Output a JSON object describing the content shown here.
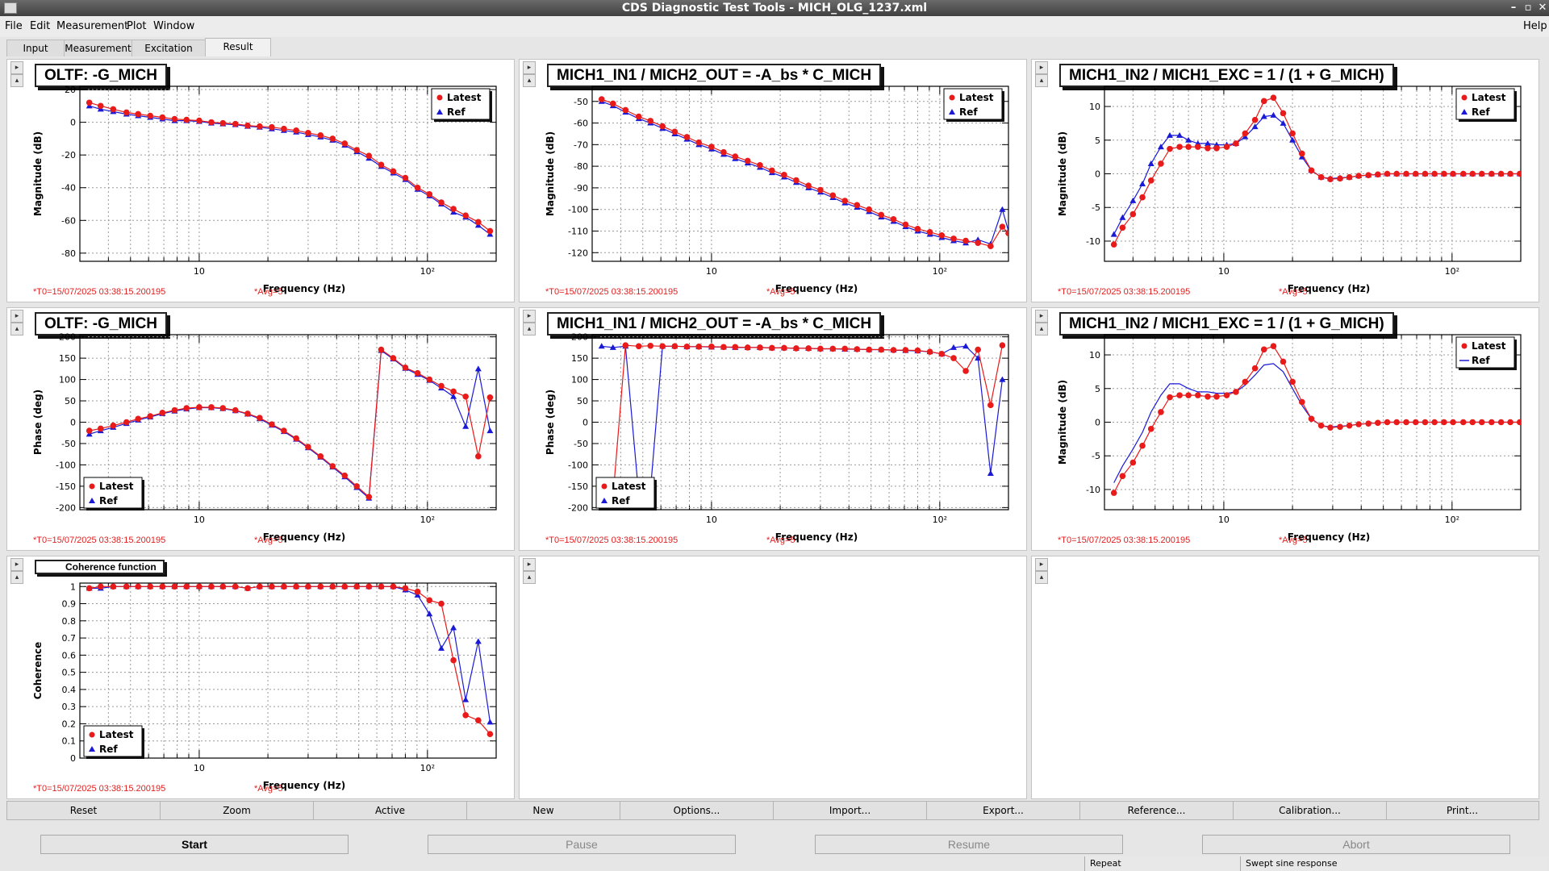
{
  "window": {
    "title": "CDS Diagnostic Test Tools - MICH_OLG_1237.xml",
    "help": "Help"
  },
  "menu": [
    "File",
    "Edit",
    "Measurement",
    "Plot",
    "Window"
  ],
  "tabs": [
    "Input",
    "Measurement",
    "Excitation",
    "Result"
  ],
  "active_tab": "Result",
  "colors": {
    "latest": "#e81a1a",
    "ref": "#1a1ad6",
    "stamp": "#e02020"
  },
  "stamp": {
    "t0": "*T0=15/07/2025 03:38:15.200195",
    "avg": "*Avg=5"
  },
  "legend": {
    "latest": "Latest",
    "ref": "Ref"
  },
  "panes": [
    {
      "title": "OLTF: -G_MICH",
      "empty": false
    },
    {
      "title": "MICH1_IN1 / MICH2_OUT = -A_bs * C_MICH",
      "empty": false
    },
    {
      "title": "MICH1_IN2 / MICH1_EXC = 1 / (1 + G_MICH)",
      "empty": false
    },
    {
      "title": "OLTF: -G_MICH",
      "empty": false
    },
    {
      "title": "MICH1_IN1 / MICH2_OUT = -A_bs * C_MICH",
      "empty": false
    },
    {
      "title": "MICH1_IN2 / MICH1_EXC = 1 / (1 + G_MICH)",
      "empty": false
    },
    {
      "title": "Coherence function",
      "empty": false,
      "small_title": true
    },
    {
      "title": "",
      "empty": true
    },
    {
      "title": "",
      "empty": true
    }
  ],
  "chart_data": [
    {
      "type": "line",
      "xscale": "log",
      "xlim": [
        3,
        200
      ],
      "ylim": [
        -85,
        22
      ],
      "xlabel": "Frequency (Hz)",
      "ylabel": "Magnitude (dB)",
      "yticks": [
        20,
        0,
        -20,
        -40,
        -60,
        -80
      ],
      "xtick_labels": [
        "10",
        "10²"
      ],
      "legend": "top-right",
      "ref_style": "markers",
      "x": [
        3.3,
        3.7,
        4.2,
        4.8,
        5.4,
        6.1,
        6.9,
        7.8,
        8.8,
        10,
        11.3,
        12.7,
        14.4,
        16.3,
        18.4,
        20.8,
        23.5,
        26.6,
        30,
        34,
        38.4,
        43.4,
        49,
        55.4,
        62.7,
        70.8,
        80,
        90.5,
        102,
        115,
        130,
        147,
        167,
        188
      ],
      "series": [
        {
          "name": "Latest",
          "values": [
            12,
            10,
            8,
            6,
            5,
            4,
            3,
            2,
            1.5,
            1,
            0,
            -0.5,
            -1,
            -2,
            -2.5,
            -3,
            -4,
            -5,
            -6.5,
            -8,
            -10,
            -13,
            -17,
            -20.5,
            -26,
            -30,
            -34,
            -40,
            -44,
            -49,
            -53,
            -57,
            -61,
            -66.5
          ]
        },
        {
          "name": "Ref",
          "values": [
            10,
            8,
            6.5,
            5,
            4,
            3,
            2,
            1,
            1,
            0.5,
            -0.5,
            -1,
            -1.5,
            -2.5,
            -3,
            -4,
            -5,
            -6,
            -7.5,
            -9,
            -11,
            -14,
            -18,
            -22,
            -27,
            -31,
            -35,
            -41,
            -45,
            -50,
            -55,
            -58,
            -63,
            -68.5
          ]
        }
      ]
    },
    {
      "type": "line",
      "xscale": "log",
      "xlim": [
        3,
        200
      ],
      "ylim": [
        -124,
        -43
      ],
      "xlabel": "Frequency (Hz)",
      "ylabel": "Magnitude (dB)",
      "yticks": [
        -50,
        -60,
        -70,
        -80,
        -90,
        -100,
        -110,
        -120
      ],
      "xtick_labels": [
        "10",
        "10²"
      ],
      "legend": "top-right",
      "ref_style": "markers",
      "x": [
        3.3,
        3.7,
        4.2,
        4.8,
        5.4,
        6.1,
        6.9,
        7.8,
        8.8,
        10,
        11.3,
        12.7,
        14.4,
        16.3,
        18.4,
        20.8,
        23.5,
        26.6,
        30,
        34,
        38.4,
        43.4,
        49,
        55.4,
        62.7,
        70.8,
        80,
        90.5,
        102,
        115,
        130,
        147,
        167,
        188,
        200
      ],
      "series": [
        {
          "name": "Latest",
          "values": [
            -49,
            -51,
            -54,
            -57,
            -59,
            -61.5,
            -64,
            -66.5,
            -69,
            -71,
            -73.5,
            -75.5,
            -77.5,
            -79.5,
            -82,
            -84,
            -86.5,
            -89,
            -91,
            -93.5,
            -96,
            -98,
            -100,
            -102.5,
            -104.5,
            -107,
            -109,
            -110.5,
            -112,
            -113.5,
            -114.5,
            -115.5,
            -117,
            -108,
            -111
          ]
        },
        {
          "name": "Ref",
          "values": [
            -50,
            -52,
            -55,
            -58,
            -60,
            -62.5,
            -65,
            -67.5,
            -70,
            -72,
            -74.5,
            -76.5,
            -78.5,
            -80.5,
            -83,
            -85,
            -87.5,
            -90,
            -92,
            -94.5,
            -97,
            -99,
            -101,
            -103.5,
            -105.5,
            -108,
            -110,
            -111.5,
            -113,
            -114.5,
            -115.5,
            -114,
            -116,
            -100,
            -110
          ]
        }
      ]
    },
    {
      "type": "line",
      "xscale": "log",
      "xlim": [
        3,
        200
      ],
      "ylim": [
        -13,
        13
      ],
      "xlabel": "Frequency (Hz)",
      "ylabel": "Magnitude (dB)",
      "yticks": [
        10,
        5,
        0,
        -5,
        -10
      ],
      "xtick_labels": [
        "10",
        "10²"
      ],
      "legend": "top-right",
      "ref_style": "markers",
      "x": [
        3.3,
        3.6,
        4,
        4.4,
        4.8,
        5.3,
        5.8,
        6.4,
        7,
        7.7,
        8.5,
        9.3,
        10.3,
        11.3,
        12.4,
        13.7,
        15,
        16.5,
        18.2,
        20,
        22,
        24.2,
        26.7,
        29.3,
        32.3,
        35.5,
        39,
        43,
        47.3,
        52,
        57.2,
        63,
        69.3,
        76.2,
        83.8,
        92.2,
        101,
        112,
        123,
        135,
        149,
        164,
        180,
        198
      ],
      "series": [
        {
          "name": "Latest",
          "values": [
            -10.5,
            -8,
            -6,
            -3.5,
            -1,
            1.5,
            3.7,
            4,
            4,
            4,
            3.8,
            3.8,
            4,
            4.5,
            6,
            8,
            10.8,
            11.3,
            9,
            6,
            3,
            0.5,
            -0.5,
            -0.8,
            -0.7,
            -0.5,
            -0.3,
            -0.2,
            -0.1,
            0,
            0,
            0,
            0,
            0,
            0,
            0,
            0,
            0,
            0,
            0,
            0,
            0,
            0,
            0
          ]
        },
        {
          "name": "Ref",
          "values": [
            -9,
            -6.5,
            -4,
            -1.5,
            1.5,
            4,
            5.7,
            5.7,
            5,
            4.5,
            4.5,
            4.3,
            4.3,
            4.5,
            5.5,
            7,
            8.5,
            8.7,
            7.5,
            5,
            2.5,
            0.5,
            -0.5,
            -0.7,
            -0.6,
            -0.5,
            -0.3,
            -0.2,
            -0.1,
            0,
            0,
            0,
            0,
            0,
            0,
            0,
            0,
            0,
            0,
            0,
            0,
            0,
            0,
            0
          ]
        }
      ]
    },
    {
      "type": "line",
      "xscale": "log",
      "xlim": [
        3,
        200
      ],
      "ylim": [
        -205,
        205
      ],
      "xlabel": "Frequency (Hz)",
      "ylabel": "Phase (deg)",
      "yticks": [
        200,
        150,
        100,
        50,
        0,
        -50,
        -100,
        -150,
        -200
      ],
      "xtick_labels": [
        "10",
        "10²"
      ],
      "legend": "bottom-left",
      "ref_style": "markers",
      "x": [
        3.3,
        3.7,
        4.2,
        4.8,
        5.4,
        6.1,
        6.9,
        7.8,
        8.8,
        10,
        11.3,
        12.7,
        14.4,
        16.3,
        18.4,
        20.8,
        23.5,
        26.6,
        30,
        34,
        38.4,
        43.4,
        49,
        55.4,
        62.7,
        70.8,
        80,
        90.5,
        102,
        115,
        130,
        147,
        167,
        188
      ],
      "series": [
        {
          "name": "Latest",
          "values": [
            -20,
            -15,
            -8,
            0,
            8,
            14,
            22,
            28,
            33,
            35,
            35,
            33,
            28,
            20,
            10,
            -5,
            -20,
            -38,
            -58,
            -80,
            -103,
            -125,
            -150,
            -175,
            170,
            150,
            128,
            115,
            100,
            85,
            72,
            60,
            -80,
            58
          ]
        },
        {
          "name": "Ref",
          "values": [
            -28,
            -20,
            -12,
            -3,
            5,
            12,
            20,
            26,
            31,
            34,
            34,
            32,
            27,
            19,
            8,
            -7,
            -22,
            -40,
            -60,
            -82,
            -105,
            -128,
            -153,
            -178,
            168,
            148,
            126,
            112,
            98,
            80,
            60,
            -10,
            125,
            -20
          ]
        }
      ]
    },
    {
      "type": "line",
      "xscale": "log",
      "xlim": [
        3,
        200
      ],
      "ylim": [
        -205,
        205
      ],
      "xlabel": "Frequency (Hz)",
      "ylabel": "Phase (deg)",
      "yticks": [
        200,
        150,
        100,
        50,
        0,
        -50,
        -100,
        -150,
        -200
      ],
      "xtick_labels": [
        "10",
        "10²"
      ],
      "legend": "bottom-left",
      "ref_style": "markers",
      "x": [
        3.3,
        3.7,
        4.2,
        4.8,
        5.4,
        6.1,
        6.9,
        7.8,
        8.8,
        10,
        11.3,
        12.7,
        14.4,
        16.3,
        18.4,
        20.8,
        23.5,
        26.6,
        30,
        34,
        38.4,
        43.4,
        49,
        55.4,
        62.7,
        70.8,
        80,
        90.5,
        102,
        115,
        130,
        147,
        167,
        188
      ],
      "series": [
        {
          "name": "Latest",
          "values": [
            -180,
            -175,
            180,
            178,
            179,
            178,
            178,
            177,
            177,
            177,
            176,
            176,
            175,
            175,
            174,
            174,
            173,
            173,
            172,
            172,
            172,
            171,
            170,
            170,
            169,
            169,
            168,
            165,
            160,
            150,
            120,
            170,
            40,
            180
          ]
        },
        {
          "name": "Ref",
          "values": [
            178,
            175,
            178,
            -170,
            -160,
            178,
            178,
            177,
            177,
            176,
            176,
            175,
            175,
            175,
            174,
            174,
            173,
            173,
            172,
            172,
            171,
            171,
            170,
            170,
            169,
            168,
            167,
            165,
            160,
            175,
            178,
            150,
            -120,
            100
          ]
        }
      ]
    },
    {
      "type": "line",
      "xscale": "log",
      "xlim": [
        3,
        200
      ],
      "ylim": [
        -13,
        13
      ],
      "xlabel": "Frequency (Hz)",
      "ylabel": "Magnitude (dB)",
      "yticks": [
        10,
        5,
        0,
        -5,
        -10
      ],
      "xtick_labels": [
        "10",
        "10²"
      ],
      "legend": "top-right",
      "ref_style": "line",
      "x": [
        3.3,
        3.6,
        4,
        4.4,
        4.8,
        5.3,
        5.8,
        6.4,
        7,
        7.7,
        8.5,
        9.3,
        10.3,
        11.3,
        12.4,
        13.7,
        15,
        16.5,
        18.2,
        20,
        22,
        24.2,
        26.7,
        29.3,
        32.3,
        35.5,
        39,
        43,
        47.3,
        52,
        57.2,
        63,
        69.3,
        76.2,
        83.8,
        92.2,
        101,
        112,
        123,
        135,
        149,
        164,
        180,
        198
      ],
      "series": [
        {
          "name": "Latest",
          "values": [
            -10.5,
            -8,
            -6,
            -3.5,
            -1,
            1.5,
            3.7,
            4,
            4,
            4,
            3.8,
            3.8,
            4,
            4.5,
            6,
            8,
            10.8,
            11.3,
            9,
            6,
            3,
            0.5,
            -0.5,
            -0.8,
            -0.7,
            -0.5,
            -0.3,
            -0.2,
            -0.1,
            0,
            0,
            0,
            0,
            0,
            0,
            0,
            0,
            0,
            0,
            0,
            0,
            0,
            0,
            0
          ]
        },
        {
          "name": "Ref",
          "values": [
            -9,
            -6.5,
            -4,
            -1.5,
            1.5,
            4,
            5.7,
            5.7,
            5,
            4.5,
            4.5,
            4.3,
            4.3,
            4.5,
            5.5,
            7,
            8.5,
            8.7,
            7.5,
            5,
            2.5,
            0.5,
            -0.5,
            -0.7,
            -0.6,
            -0.5,
            -0.3,
            -0.2,
            -0.1,
            0,
            0,
            0,
            0,
            0,
            0,
            0,
            0,
            0,
            0,
            0,
            0,
            0,
            0,
            0
          ]
        }
      ]
    },
    {
      "type": "line",
      "xscale": "log",
      "xlim": [
        3,
        200
      ],
      "ylim": [
        0,
        1.02
      ],
      "xlabel": "Frequency (Hz)",
      "ylabel": "Coherence",
      "yticks": [
        1,
        0.9,
        0.8,
        0.7,
        0.6,
        0.5,
        0.4,
        0.3,
        0.2,
        0.1,
        0
      ],
      "xtick_labels": [
        "10",
        "10²"
      ],
      "legend": "bottom-left",
      "ref_style": "markers",
      "x": [
        3.3,
        3.7,
        4.2,
        4.8,
        5.4,
        6.1,
        6.9,
        7.8,
        8.8,
        10,
        11.3,
        12.7,
        14.4,
        16.3,
        18.4,
        20.8,
        23.5,
        26.6,
        30,
        34,
        38.4,
        43.4,
        49,
        55.4,
        62.7,
        70.8,
        80,
        90.5,
        102,
        115,
        130,
        147,
        167,
        188
      ],
      "series": [
        {
          "name": "Latest",
          "values": [
            0.99,
            1,
            1,
            1,
            1,
            1,
            1,
            1,
            1,
            1,
            1,
            1,
            1,
            0.99,
            1,
            1,
            1,
            1,
            1,
            1,
            1,
            1,
            1,
            1,
            1,
            1,
            0.99,
            0.97,
            0.92,
            0.9,
            0.57,
            0.25,
            0.22,
            0.14
          ]
        },
        {
          "name": "Ref",
          "values": [
            0.99,
            0.99,
            1,
            1,
            1,
            1,
            1,
            1,
            1,
            1,
            1,
            1,
            1,
            0.99,
            1,
            1,
            1,
            1,
            1,
            1,
            1,
            1,
            1,
            1,
            1,
            1,
            0.98,
            0.95,
            0.84,
            0.64,
            0.76,
            0.34,
            0.68,
            0.21
          ]
        }
      ]
    }
  ],
  "buttons": [
    "Reset",
    "Zoom",
    "Active",
    "New",
    "Options...",
    "Import...",
    "Export...",
    "Reference...",
    "Calibration...",
    "Print..."
  ],
  "big_buttons": [
    "Start",
    "Pause",
    "Resume",
    "Abort"
  ],
  "status": [
    "Repeat",
    "Swept sine response"
  ]
}
